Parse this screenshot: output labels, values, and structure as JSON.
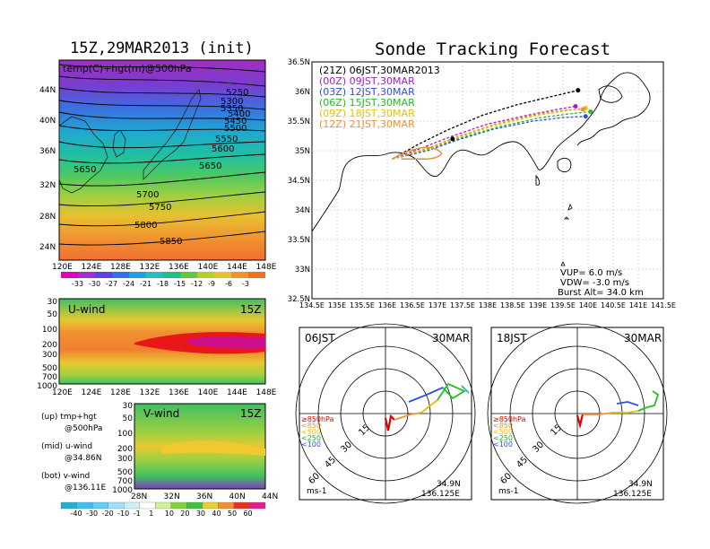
{
  "left_title": "15Z,29MAR2013 (init)",
  "right_title": "Sonde Tracking Forecast",
  "colors": {
    "map_bg": "#f5f5f5",
    "launch_21z": "#000000",
    "launch_00z": "#a020c0",
    "launch_03z": "#3050e0",
    "launch_06z": "#20c020",
    "launch_09z": "#e8c000",
    "launch_12z": "#f09030"
  },
  "icons": [
    "launch-site-marker-icon"
  ],
  "map_panel": {
    "label": "temp(C)+hgt(m)@500hPa",
    "lon_ticks": [
      "120E",
      "124E",
      "128E",
      "132E",
      "136E",
      "140E",
      "144E",
      "148E"
    ],
    "lat_ticks": [
      "44N",
      "40N",
      "36N",
      "32N",
      "28N",
      "24N"
    ],
    "contour_labels": [
      "5250",
      "5300",
      "5350",
      "5400",
      "5450",
      "5500",
      "5550",
      "5600",
      "5650",
      "5650",
      "5700",
      "5750",
      "5800",
      "5850"
    ],
    "temp_colorbar": [
      "-33",
      "-30",
      "-27",
      "-24",
      "-21",
      "-18",
      "-15",
      "-12",
      "-9",
      "-6",
      "-3"
    ]
  },
  "uwind_panel": {
    "label": "U-wind",
    "time": "15Z",
    "p_ticks": [
      "30",
      "50",
      "100",
      "200",
      "300",
      "500",
      "700",
      "1000"
    ],
    "lon_ticks": [
      "120E",
      "124E",
      "128E",
      "132E",
      "136E",
      "140E",
      "144E",
      "148E"
    ]
  },
  "vwind_panel": {
    "label": "V-wind",
    "time": "15Z",
    "p_ticks": [
      "30",
      "50",
      "100",
      "200",
      "300",
      "500",
      "700",
      "1000"
    ],
    "lat_ticks": [
      "28N",
      "32N",
      "36N",
      "40N",
      "44N"
    ]
  },
  "wind_colorbar": [
    "-40",
    "-30",
    "-20",
    "-10",
    "-1",
    "1",
    "10",
    "20",
    "30",
    "40",
    "50",
    "60"
  ],
  "notes": {
    "up_a": "(up) tmp+hgt",
    "up_b": "@500hPa",
    "mid_a": "(mid) u-wind",
    "mid_b": "@34.86N",
    "bot_a": "(bot) v-wind",
    "bot_b": "@136.11E"
  },
  "track_panel": {
    "lat_ticks": [
      "36.5N",
      "36N",
      "35.5N",
      "35N",
      "34.5N",
      "34N",
      "33.5N",
      "33N",
      "32.5N"
    ],
    "lon_ticks": [
      "134.5E",
      "135E",
      "135.5E",
      "136E",
      "136.5E",
      "137E",
      "137.5E",
      "138E",
      "138.5E",
      "139E",
      "139.5E",
      "140E",
      "140.5E",
      "141E",
      "141.5E"
    ],
    "legend": [
      {
        "tag": "(21Z)",
        "time": "06JST,30MAR2013",
        "color": "#000000"
      },
      {
        "tag": "(00Z)",
        "time": "09JST,30MAR",
        "color": "#a020c0"
      },
      {
        "tag": "(03Z)",
        "time": "12JST,30MAR",
        "color": "#3050e0"
      },
      {
        "tag": "(06Z)",
        "time": "15JST,30MAR",
        "color": "#20c020"
      },
      {
        "tag": "(09Z)",
        "time": "18JST,30MAR",
        "color": "#e8c000"
      },
      {
        "tag": "(12Z)",
        "time": "21JST,30MAR",
        "color": "#f09030"
      }
    ],
    "vup": "VUP=  6.0  m/s",
    "vdw": "VDW= -3.0  m/s",
    "burst": "Burst Alt= 34.0  km"
  },
  "hodo_left": {
    "time": "06JST",
    "date": "30MAR",
    "unit": "ms-1",
    "lat": "34.9N",
    "lon": "136.125E",
    "rings": [
      "15",
      "30",
      "45",
      "60"
    ],
    "levels": [
      "≥850hPa",
      "<850",
      "<500",
      "<250",
      "<100"
    ]
  },
  "hodo_right": {
    "time": "18JST",
    "date": "30MAR",
    "unit": "ms-1",
    "lat": "34.9N",
    "lon": "136.125E",
    "rings": [
      "15",
      "30",
      "45",
      "60"
    ],
    "levels": [
      "≥850hPa",
      "<850",
      "<500",
      "<250",
      "<100"
    ]
  },
  "chart_data": [
    {
      "type": "line",
      "title": "Sonde Tracking Forecast",
      "xlim": [
        134.5,
        141.5
      ],
      "ylim": [
        32.5,
        36.5
      ],
      "launch": [
        136.1,
        34.86
      ],
      "series": [
        {
          "name": "(21Z) 06JST,30MAR2013",
          "x": [
            136.1,
            136.6,
            137.2,
            137.9,
            138.6,
            139.3,
            139.8
          ],
          "y": [
            34.86,
            35.1,
            35.35,
            35.6,
            35.78,
            35.92,
            36.02
          ]
        },
        {
          "name": "(00Z) 09JST,30MAR",
          "x": [
            136.1,
            136.7,
            137.3,
            138.0,
            138.8,
            139.4,
            139.75
          ],
          "y": [
            34.86,
            35.05,
            35.25,
            35.45,
            35.6,
            35.7,
            35.75
          ]
        },
        {
          "name": "(03Z) 12JST,30MAR",
          "x": [
            136.1,
            136.8,
            137.4,
            138.1,
            138.9,
            139.5,
            139.95
          ],
          "y": [
            34.86,
            35.0,
            35.18,
            35.36,
            35.5,
            35.56,
            35.58
          ]
        },
        {
          "name": "(06Z) 15JST,30MAR",
          "x": [
            136.1,
            136.8,
            137.4,
            138.2,
            139.0,
            139.6,
            140.05
          ],
          "y": [
            34.86,
            35.02,
            35.2,
            35.4,
            35.55,
            35.62,
            35.66
          ]
        },
        {
          "name": "(09Z) 18JST,30MAR",
          "x": [
            136.1,
            136.8,
            137.4,
            138.2,
            139.0,
            139.6,
            139.95
          ],
          "y": [
            34.86,
            35.03,
            35.22,
            35.44,
            35.6,
            35.68,
            35.72
          ]
        },
        {
          "name": "(12Z) 21JST,30MAR",
          "x": [
            136.1,
            136.8,
            137.4,
            138.2,
            139.0,
            139.6,
            139.9
          ],
          "y": [
            34.86,
            35.04,
            35.24,
            35.46,
            35.62,
            35.69,
            35.7
          ]
        }
      ]
    }
  ]
}
